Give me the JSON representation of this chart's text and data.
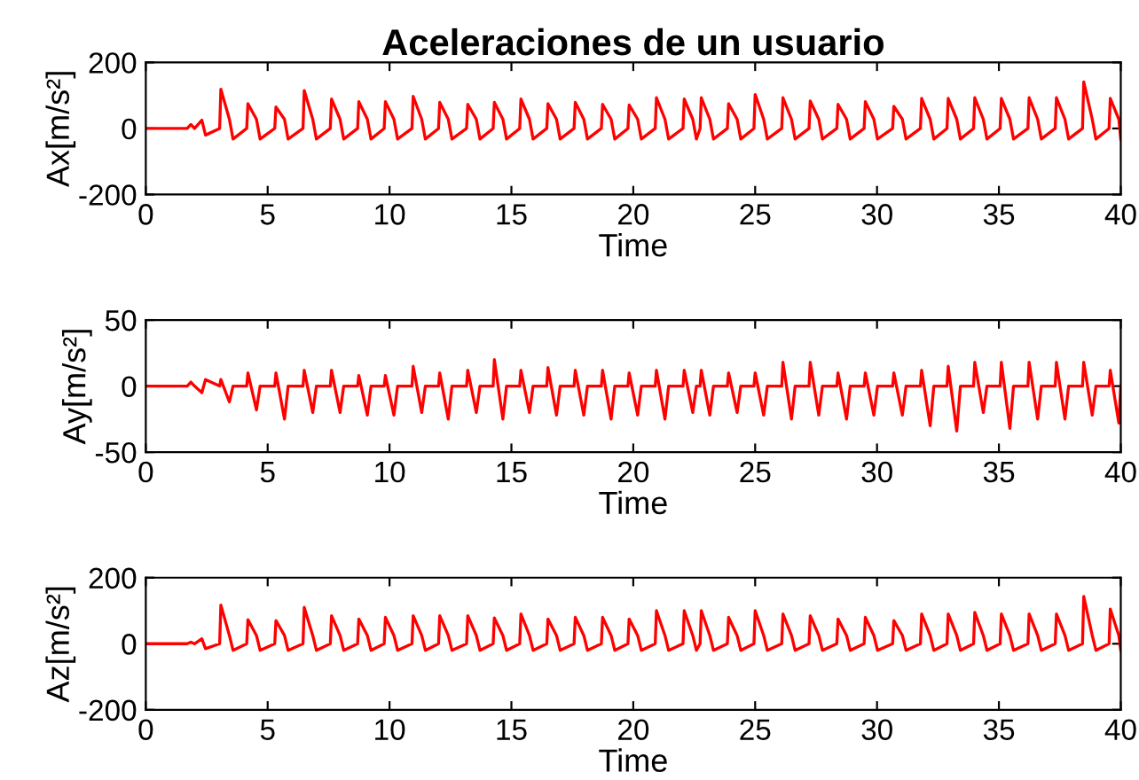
{
  "chart_data": [
    {
      "type": "line",
      "title": "Aceleraciones de un usuario",
      "xlabel": "Time",
      "ylabel": "Ax[m/s²]",
      "xlim": [
        0,
        40
      ],
      "xticks": [
        0,
        5,
        10,
        15,
        20,
        25,
        30,
        35,
        40
      ],
      "ylim": [
        -200,
        200
      ],
      "yticks": [
        -200,
        0,
        200
      ],
      "grid": false,
      "x": [
        0,
        1.7,
        1.85,
        2.0,
        2.3,
        2.45,
        3.03,
        3.08,
        3.43,
        3.58,
        4.14,
        4.19,
        4.54,
        4.69,
        5.29,
        5.34,
        5.69,
        5.84,
        6.45,
        6.5,
        6.85,
        7.0,
        7.57,
        7.62,
        7.97,
        8.12,
        8.69,
        8.74,
        9.09,
        9.24,
        9.78,
        9.83,
        10.18,
        10.33,
        10.92,
        10.97,
        11.32,
        11.47,
        12.01,
        12.06,
        12.41,
        12.56,
        13.16,
        13.21,
        13.56,
        13.71,
        14.25,
        14.3,
        14.65,
        14.8,
        15.34,
        15.39,
        15.74,
        15.89,
        16.45,
        16.5,
        16.85,
        17.0,
        17.57,
        17.62,
        17.97,
        18.12,
        18.69,
        18.74,
        19.09,
        19.24,
        19.78,
        19.83,
        20.18,
        20.33,
        20.9,
        20.95,
        21.3,
        21.45,
        22.04,
        22.09,
        22.44,
        22.59,
        22.74,
        22.79,
        23.14,
        23.29,
        23.86,
        23.91,
        24.26,
        24.41,
        24.95,
        25.0,
        25.35,
        25.5,
        26.09,
        26.14,
        26.49,
        26.64,
        27.21,
        27.26,
        27.61,
        27.76,
        28.35,
        28.4,
        28.75,
        28.9,
        29.47,
        29.52,
        29.87,
        30.02,
        30.64,
        30.69,
        31.04,
        31.19,
        31.78,
        31.83,
        32.18,
        32.33,
        32.87,
        32.92,
        33.27,
        33.42,
        33.96,
        34.01,
        34.36,
        34.51,
        35.05,
        35.1,
        35.45,
        35.6,
        36.19,
        36.24,
        36.59,
        36.74,
        37.31,
        37.36,
        37.71,
        37.86,
        38.43,
        38.48,
        38.83,
        38.98,
        39.52,
        39.57,
        39.92,
        40.0
      ],
      "series": [
        {
          "color": "#ff0000",
          "values": [
            0,
            0,
            12,
            0,
            25,
            -20,
            0,
            119,
            28,
            -32,
            0,
            75,
            28,
            -32,
            0,
            65,
            28,
            -32,
            0,
            115,
            28,
            -32,
            0,
            89,
            28,
            -32,
            0,
            81,
            28,
            -32,
            0,
            81,
            28,
            -32,
            0,
            97,
            28,
            -32,
            0,
            79,
            28,
            -32,
            0,
            73,
            28,
            -32,
            0,
            79,
            28,
            -32,
            0,
            89,
            28,
            -32,
            0,
            75,
            28,
            -32,
            0,
            79,
            28,
            -32,
            0,
            73,
            28,
            -32,
            0,
            71,
            28,
            -32,
            0,
            93,
            28,
            -32,
            0,
            89,
            28,
            -32,
            0,
            93,
            28,
            -32,
            0,
            75,
            28,
            -32,
            0,
            103,
            28,
            -32,
            0,
            93,
            28,
            -32,
            0,
            83,
            28,
            -32,
            0,
            73,
            28,
            -32,
            0,
            81,
            28,
            -32,
            0,
            67,
            28,
            -32,
            0,
            91,
            28,
            -32,
            0,
            91,
            28,
            -32,
            0,
            93,
            28,
            -32,
            0,
            91,
            28,
            -32,
            0,
            93,
            28,
            -32,
            0,
            93,
            28,
            -32,
            0,
            141,
            28,
            -32,
            0,
            91,
            28,
            -32
          ]
        }
      ]
    },
    {
      "type": "line",
      "xlabel": "Time",
      "ylabel": "Ay[m/s²]",
      "xlim": [
        0,
        40
      ],
      "xticks": [
        0,
        5,
        10,
        15,
        20,
        25,
        30,
        35,
        40
      ],
      "ylim": [
        -50,
        50
      ],
      "yticks": [
        -50,
        0,
        50
      ],
      "grid": false,
      "x": [
        0,
        1.7,
        1.85,
        2.0,
        2.3,
        2.45,
        3.03,
        3.08,
        3.43,
        3.58,
        4.14,
        4.19,
        4.54,
        4.69,
        5.29,
        5.34,
        5.69,
        5.84,
        6.45,
        6.5,
        6.85,
        7.0,
        7.57,
        7.62,
        7.97,
        8.12,
        8.69,
        8.74,
        9.09,
        9.24,
        9.78,
        9.83,
        10.18,
        10.33,
        10.92,
        10.97,
        11.32,
        11.47,
        12.01,
        12.06,
        12.41,
        12.56,
        13.16,
        13.21,
        13.56,
        13.71,
        14.25,
        14.3,
        14.65,
        14.8,
        15.34,
        15.39,
        15.74,
        15.89,
        16.45,
        16.5,
        16.85,
        17.0,
        17.57,
        17.62,
        17.97,
        18.12,
        18.69,
        18.74,
        19.09,
        19.24,
        19.78,
        19.83,
        20.18,
        20.33,
        20.9,
        20.95,
        21.3,
        21.45,
        22.04,
        22.09,
        22.44,
        22.59,
        22.74,
        22.79,
        23.14,
        23.29,
        23.86,
        23.91,
        24.26,
        24.41,
        24.95,
        25.0,
        25.35,
        25.5,
        26.09,
        26.14,
        26.49,
        26.64,
        27.21,
        27.26,
        27.61,
        27.76,
        28.35,
        28.4,
        28.75,
        28.9,
        29.47,
        29.52,
        29.87,
        30.02,
        30.64,
        30.69,
        31.04,
        31.19,
        31.78,
        31.83,
        32.18,
        32.33,
        32.87,
        32.92,
        33.27,
        33.42,
        33.96,
        34.01,
        34.36,
        34.51,
        35.05,
        35.1,
        35.45,
        35.6,
        36.19,
        36.24,
        36.59,
        36.74,
        37.31,
        37.36,
        37.71,
        37.86,
        38.43,
        38.48,
        38.83,
        38.98,
        39.52,
        39.57,
        39.92,
        40.0
      ],
      "series": [
        {
          "color": "#ff0000",
          "values": [
            0,
            0,
            3,
            0,
            -5,
            5,
            0,
            5,
            -12,
            0,
            0,
            10,
            -18,
            0,
            0,
            10,
            -25,
            0,
            0,
            12,
            -20,
            0,
            0,
            12,
            -20,
            0,
            0,
            8,
            -22,
            0,
            0,
            8,
            -22,
            0,
            0,
            15,
            -20,
            0,
            0,
            10,
            -25,
            0,
            0,
            12,
            -20,
            0,
            0,
            20,
            -25,
            0,
            0,
            12,
            -20,
            0,
            0,
            14,
            -22,
            0,
            0,
            12,
            -22,
            0,
            0,
            12,
            -25,
            0,
            0,
            10,
            -22,
            0,
            0,
            12,
            -25,
            0,
            0,
            12,
            -20,
            0,
            0,
            12,
            -22,
            0,
            0,
            10,
            -20,
            0,
            0,
            10,
            -22,
            0,
            0,
            18,
            -25,
            0,
            0,
            18,
            -22,
            0,
            0,
            10,
            -25,
            0,
            0,
            10,
            -22,
            0,
            0,
            10,
            -22,
            0,
            0,
            12,
            -30,
            0,
            0,
            15,
            -34,
            0,
            0,
            18,
            -20,
            0,
            0,
            18,
            -32,
            0,
            0,
            18,
            -25,
            0,
            0,
            18,
            -25,
            0,
            0,
            18,
            -22,
            0,
            0,
            12,
            -28,
            0
          ]
        }
      ]
    },
    {
      "type": "line",
      "xlabel": "Time",
      "ylabel": "Az[m/s²]",
      "xlim": [
        0,
        40
      ],
      "xticks": [
        0,
        5,
        10,
        15,
        20,
        25,
        30,
        35,
        40
      ],
      "ylim": [
        -200,
        200
      ],
      "yticks": [
        -200,
        0,
        200
      ],
      "grid": false,
      "x": [
        0,
        1.7,
        1.85,
        2.0,
        2.3,
        2.45,
        3.03,
        3.08,
        3.43,
        3.58,
        4.14,
        4.19,
        4.54,
        4.69,
        5.29,
        5.34,
        5.69,
        5.84,
        6.45,
        6.5,
        6.85,
        7.0,
        7.57,
        7.62,
        7.97,
        8.12,
        8.69,
        8.74,
        9.09,
        9.24,
        9.78,
        9.83,
        10.18,
        10.33,
        10.92,
        10.97,
        11.32,
        11.47,
        12.01,
        12.06,
        12.41,
        12.56,
        13.16,
        13.21,
        13.56,
        13.71,
        14.25,
        14.3,
        14.65,
        14.8,
        15.34,
        15.39,
        15.74,
        15.89,
        16.45,
        16.5,
        16.85,
        17.0,
        17.57,
        17.62,
        17.97,
        18.12,
        18.69,
        18.74,
        19.09,
        19.24,
        19.78,
        19.83,
        20.18,
        20.33,
        20.9,
        20.95,
        21.3,
        21.45,
        22.04,
        22.09,
        22.44,
        22.59,
        22.74,
        22.79,
        23.14,
        23.29,
        23.86,
        23.91,
        24.26,
        24.41,
        24.95,
        25.0,
        25.35,
        25.5,
        26.09,
        26.14,
        26.49,
        26.64,
        27.21,
        27.26,
        27.61,
        27.76,
        28.35,
        28.4,
        28.75,
        28.9,
        29.47,
        29.52,
        29.87,
        30.02,
        30.64,
        30.69,
        31.04,
        31.19,
        31.78,
        31.83,
        32.18,
        32.33,
        32.87,
        32.92,
        33.27,
        33.42,
        33.96,
        34.01,
        34.36,
        34.51,
        35.05,
        35.1,
        35.45,
        35.6,
        36.19,
        36.24,
        36.59,
        36.74,
        37.31,
        37.36,
        37.71,
        37.86,
        38.43,
        38.48,
        38.83,
        38.98,
        39.52,
        39.57,
        39.92,
        40.0
      ],
      "series": [
        {
          "color": "#ff0000",
          "values": [
            0,
            0,
            5,
            0,
            15,
            -15,
            0,
            117,
            25,
            -20,
            0,
            73,
            25,
            -20,
            0,
            70,
            25,
            -20,
            0,
            110,
            25,
            -20,
            0,
            85,
            25,
            -20,
            0,
            75,
            25,
            -20,
            0,
            80,
            25,
            -20,
            0,
            85,
            25,
            -20,
            0,
            85,
            25,
            -20,
            0,
            85,
            25,
            -20,
            0,
            78,
            25,
            -20,
            0,
            90,
            25,
            -20,
            0,
            75,
            25,
            -20,
            0,
            80,
            25,
            -20,
            0,
            80,
            25,
            -20,
            0,
            75,
            25,
            -20,
            0,
            100,
            25,
            -20,
            0,
            100,
            25,
            -20,
            0,
            100,
            25,
            -20,
            0,
            80,
            25,
            -20,
            0,
            100,
            25,
            -20,
            0,
            90,
            25,
            -20,
            0,
            85,
            25,
            -20,
            0,
            75,
            25,
            -20,
            0,
            80,
            25,
            -20,
            0,
            70,
            25,
            -20,
            0,
            90,
            25,
            -20,
            0,
            90,
            25,
            -20,
            0,
            95,
            25,
            -20,
            0,
            90,
            25,
            -20,
            0,
            90,
            25,
            -20,
            0,
            90,
            25,
            -20,
            0,
            143,
            25,
            -20,
            0,
            105,
            25,
            -20
          ]
        }
      ]
    }
  ]
}
